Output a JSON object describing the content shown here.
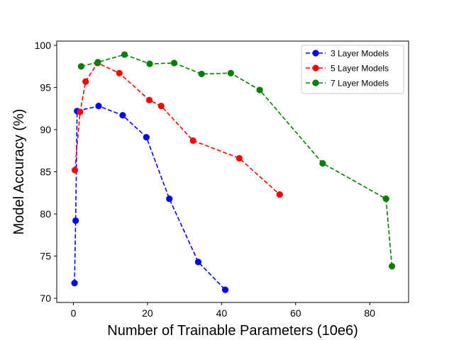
{
  "chart_data": {
    "type": "line",
    "title": "",
    "xlabel": "Number of Trainable Parameters (10e6)",
    "ylabel": "Model Accuracy (%)",
    "xlim": [
      -4.5,
      90.5
    ],
    "ylim": [
      69.5,
      100.5
    ],
    "xticks": [
      0,
      20,
      40,
      60,
      80
    ],
    "yticks": [
      70,
      75,
      80,
      85,
      90,
      95,
      100
    ],
    "grid": false,
    "legend_position": "top-right",
    "series": [
      {
        "name": "3 Layer Models",
        "color": "#0000ff",
        "line_style": "dashed",
        "marker": "circle",
        "points": [
          [
            0.3,
            71.8
          ],
          [
            0.6,
            79.2
          ],
          [
            1.0,
            92.2
          ],
          [
            6.8,
            92.8
          ],
          [
            13.3,
            91.7
          ],
          [
            19.7,
            89.1
          ],
          [
            25.9,
            81.8
          ],
          [
            33.7,
            74.3
          ],
          [
            41.0,
            71.0
          ]
        ]
      },
      {
        "name": "5 Layer Models",
        "color": "#ff0000",
        "line_style": "dashed",
        "marker": "circle",
        "points": [
          [
            0.4,
            85.2
          ],
          [
            1.8,
            92.1
          ],
          [
            3.3,
            95.7
          ],
          [
            6.5,
            97.9
          ],
          [
            12.4,
            96.7
          ],
          [
            20.5,
            93.5
          ],
          [
            23.7,
            92.8
          ],
          [
            32.3,
            88.7
          ],
          [
            44.8,
            86.6
          ],
          [
            55.7,
            82.3
          ]
        ]
      },
      {
        "name": "7 Layer Models",
        "color": "#008000",
        "line_style": "dashed",
        "marker": "circle",
        "points": [
          [
            2.1,
            97.5
          ],
          [
            6.6,
            98.0
          ],
          [
            13.8,
            98.9
          ],
          [
            20.6,
            97.8
          ],
          [
            27.2,
            97.9
          ],
          [
            34.6,
            96.6
          ],
          [
            42.5,
            96.7
          ],
          [
            50.3,
            94.7
          ],
          [
            67.3,
            86.0
          ],
          [
            84.4,
            81.8
          ],
          [
            86.0,
            73.8
          ]
        ]
      }
    ]
  }
}
